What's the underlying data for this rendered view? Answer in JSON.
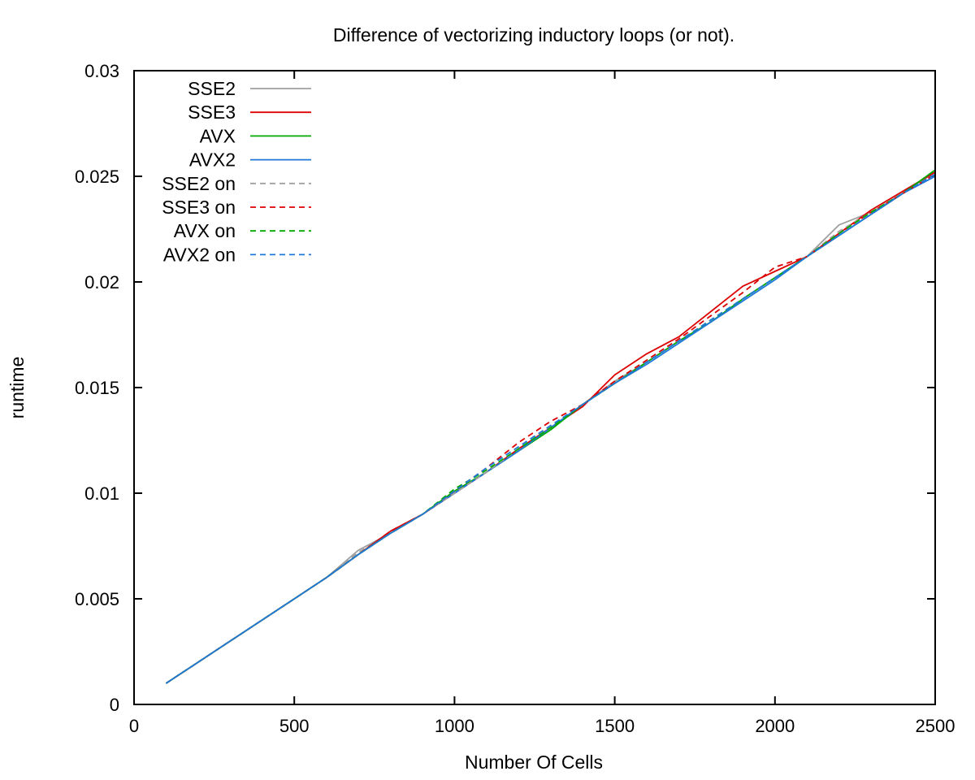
{
  "chart_data": {
    "type": "line",
    "title": "Difference of vectorizing inductory loops (or not).",
    "xlabel": "Number Of Cells",
    "ylabel": "runtime",
    "xlim": [
      0,
      2500
    ],
    "ylim": [
      0,
      0.03
    ],
    "xticks": [
      0,
      500,
      1000,
      1500,
      2000,
      2500
    ],
    "xtick_labels": [
      "0",
      "500",
      "1000",
      "1500",
      "2000",
      "2500"
    ],
    "yticks": [
      0,
      0.005,
      0.01,
      0.015,
      0.02,
      0.025,
      0.03
    ],
    "ytick_labels": [
      "0",
      "0.005",
      "0.01",
      "0.015",
      "0.02",
      "0.025",
      "0.03"
    ],
    "grid": false,
    "legend_position": "top-left",
    "x": [
      100,
      200,
      300,
      400,
      500,
      600,
      700,
      800,
      900,
      1000,
      1100,
      1200,
      1300,
      1400,
      1500,
      1600,
      1700,
      1800,
      1900,
      2000,
      2100,
      2200,
      2300,
      2400,
      2500
    ],
    "series": [
      {
        "name": "SSE2",
        "color": "#a0a0a0",
        "dash": "solid",
        "values": [
          0.001,
          0.002,
          0.003,
          0.004,
          0.005,
          0.006,
          0.0073,
          0.0081,
          0.009,
          0.01,
          0.011,
          0.0121,
          0.0131,
          0.0142,
          0.0153,
          0.0162,
          0.0172,
          0.0181,
          0.0192,
          0.0202,
          0.0212,
          0.0227,
          0.0233,
          0.0242,
          0.0252
        ]
      },
      {
        "name": "SSE3",
        "color": "#dd0000",
        "dash": "solid",
        "values": [
          0.001,
          0.002,
          0.003,
          0.004,
          0.005,
          0.006,
          0.0071,
          0.0082,
          0.009,
          0.01,
          0.011,
          0.0121,
          0.0131,
          0.0141,
          0.0156,
          0.0166,
          0.0174,
          0.0186,
          0.0198,
          0.0205,
          0.0212,
          0.0223,
          0.0234,
          0.0243,
          0.0252
        ]
      },
      {
        "name": "AVX",
        "color": "#00aa00",
        "dash": "solid",
        "values": [
          0.001,
          0.002,
          0.003,
          0.004,
          0.005,
          0.006,
          0.0071,
          0.0081,
          0.009,
          0.0101,
          0.011,
          0.012,
          0.013,
          0.0142,
          0.0152,
          0.0162,
          0.0172,
          0.0181,
          0.0192,
          0.0202,
          0.0212,
          0.0222,
          0.0232,
          0.0242,
          0.0253
        ]
      },
      {
        "name": "AVX2",
        "color": "#1e78dc",
        "dash": "solid",
        "values": [
          0.001,
          0.002,
          0.003,
          0.004,
          0.005,
          0.006,
          0.0071,
          0.0081,
          0.009,
          0.01,
          0.011,
          0.012,
          0.0131,
          0.0142,
          0.0152,
          0.0161,
          0.0171,
          0.0181,
          0.0191,
          0.0201,
          0.0212,
          0.0222,
          0.0232,
          0.0242,
          0.025
        ]
      },
      {
        "name": "SSE2 on",
        "color": "#a0a0a0",
        "dash": "dashed",
        "values": [
          0.001,
          0.002,
          0.003,
          0.004,
          0.005,
          0.006,
          0.0072,
          0.0081,
          0.009,
          0.01,
          0.011,
          0.0121,
          0.0132,
          0.0142,
          0.0152,
          0.0162,
          0.0172,
          0.0182,
          0.0192,
          0.0202,
          0.0212,
          0.0224,
          0.0233,
          0.0242,
          0.0251
        ]
      },
      {
        "name": "SSE3 on",
        "color": "#dd0000",
        "dash": "dashed",
        "values": [
          0.001,
          0.002,
          0.003,
          0.004,
          0.005,
          0.006,
          0.0071,
          0.0082,
          0.009,
          0.0101,
          0.0112,
          0.0124,
          0.0134,
          0.0142,
          0.0153,
          0.0163,
          0.0173,
          0.0184,
          0.0195,
          0.0207,
          0.0212,
          0.0223,
          0.0233,
          0.0242,
          0.0251
        ]
      },
      {
        "name": "AVX on",
        "color": "#00aa00",
        "dash": "dashed",
        "values": [
          0.001,
          0.002,
          0.003,
          0.004,
          0.005,
          0.006,
          0.0071,
          0.0081,
          0.009,
          0.0102,
          0.0111,
          0.0121,
          0.0131,
          0.0142,
          0.0152,
          0.0162,
          0.0172,
          0.0182,
          0.0192,
          0.0202,
          0.0212,
          0.0223,
          0.0233,
          0.0242,
          0.0253
        ]
      },
      {
        "name": "AVX2 on",
        "color": "#1e78dc",
        "dash": "dashed",
        "values": [
          0.001,
          0.002,
          0.003,
          0.004,
          0.005,
          0.006,
          0.0071,
          0.0081,
          0.009,
          0.0101,
          0.0112,
          0.0122,
          0.0132,
          0.0142,
          0.0152,
          0.0162,
          0.0172,
          0.0182,
          0.0192,
          0.0202,
          0.0212,
          0.0222,
          0.0232,
          0.0242,
          0.0251
        ]
      }
    ]
  }
}
